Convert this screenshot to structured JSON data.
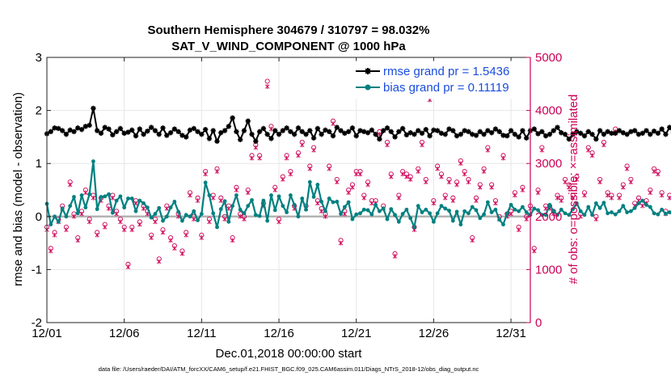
{
  "title_line1": "Southern Hemisphere 304679 / 310797 = 98.032%",
  "title_line2": "SAT_V_WIND_COMPONENT @ 1000 hPa",
  "footnote": "data file: /Users/raeder/DAI/ATM_forcXX/CAM6_setup/f.e21.FHIST_BGC.f09_025.CAM6assim.011/Diags_NTrS_2018-12/obs_diag_output.nc",
  "colors": {
    "rmse": "#000000",
    "bias": "#008080",
    "obs": "#cc0055",
    "legend_rmse_text": "#1a4ddb",
    "legend_bias_text": "#1a4ddb",
    "zero_line": "#b3b3b3",
    "grid": "#e6e6e6"
  },
  "chart_data": {
    "type": "line",
    "title": "Southern Hemisphere 304679 / 310797 = 98.032%",
    "subtitle": "SAT_V_WIND_COMPONENT @ 1000 hPa",
    "xlabel": "Dec.01,2018 00:00:00 start",
    "ylabel": "rmse and bias (model - observation)",
    "y2label": "# of obs: o=possible; ×=assimilated",
    "xlim": [
      0,
      31.25
    ],
    "ylim": [
      -2,
      3
    ],
    "y2lim": [
      0,
      5000
    ],
    "xticks": [
      0,
      5,
      10,
      15,
      20,
      25,
      30
    ],
    "xtick_labels": [
      "12/01",
      "12/06",
      "12/11",
      "12/16",
      "12/21",
      "12/26",
      "12/31"
    ],
    "yticks": [
      -2,
      -1,
      0,
      1,
      2,
      3
    ],
    "ytick_labels": [
      "-2",
      "-1",
      "0",
      "1",
      "2",
      "3"
    ],
    "y2ticks": [
      0,
      1000,
      2000,
      3000,
      4000,
      5000
    ],
    "y2tick_labels": [
      "0",
      "1000",
      "2000",
      "3000",
      "4000",
      "5000"
    ],
    "legend": [
      {
        "name": "rmse grand pr = 1.5436",
        "series": "rmse"
      },
      {
        "name": "bias grand pr = 0.11119",
        "series": "bias"
      }
    ],
    "legend_position": "top-right",
    "grid": true,
    "time_step_days": 0.25,
    "series": [
      {
        "name": "rmse",
        "axis": "left",
        "marker": "star",
        "values": [
          1.56,
          1.6,
          1.67,
          1.66,
          1.62,
          1.55,
          1.63,
          1.6,
          1.67,
          1.64,
          1.7,
          1.72,
          2.04,
          1.62,
          1.57,
          1.68,
          1.65,
          1.54,
          1.6,
          1.66,
          1.57,
          1.59,
          1.63,
          1.52,
          1.65,
          1.55,
          1.61,
          1.68,
          1.62,
          1.55,
          1.67,
          1.53,
          1.58,
          1.65,
          1.6,
          1.53,
          1.5,
          1.63,
          1.66,
          1.6,
          1.55,
          1.64,
          1.47,
          1.62,
          1.42,
          1.58,
          1.62,
          1.7,
          1.86,
          1.6,
          1.45,
          1.62,
          1.8,
          1.55,
          1.42,
          1.6,
          1.66,
          1.55,
          1.47,
          1.62,
          1.55,
          1.62,
          1.67,
          1.6,
          1.55,
          1.67,
          1.6,
          1.55,
          1.62,
          1.48,
          1.66,
          1.55,
          1.63,
          1.6,
          1.52,
          1.68,
          1.62,
          1.57,
          1.6,
          1.67,
          1.52,
          1.62,
          1.6,
          1.58,
          1.63,
          1.55,
          1.46,
          1.62,
          1.67,
          1.6,
          1.5,
          1.6,
          1.66,
          1.54,
          1.58,
          1.55,
          1.62,
          1.57,
          1.64,
          1.52,
          1.63,
          1.62,
          1.57,
          1.55,
          1.65,
          1.62,
          1.52,
          1.55,
          1.62,
          1.6,
          1.55,
          1.53,
          1.6,
          1.55,
          1.62,
          1.58,
          1.65,
          1.6,
          1.53,
          1.52,
          1.62,
          1.55,
          1.5,
          1.62,
          1.48,
          1.62,
          1.65,
          1.56,
          1.6,
          1.52,
          1.55,
          1.62,
          1.68,
          1.58,
          1.55,
          1.46,
          1.55,
          1.6,
          1.57,
          1.52,
          1.6,
          1.55,
          1.46,
          1.62,
          1.55,
          1.6,
          1.57,
          1.57,
          1.62,
          1.58,
          1.55,
          1.6,
          1.62,
          1.55,
          1.57,
          1.62,
          1.55,
          1.61,
          1.57,
          1.65,
          1.55,
          1.68,
          1.58,
          1.62,
          1.73,
          1.66,
          1.6,
          1.55,
          1.62,
          1.52,
          1.58,
          1.64,
          1.6,
          1.68,
          1.58,
          1.55,
          1.63,
          1.57,
          1.6,
          1.55,
          1.6,
          1.65,
          1.55,
          1.57,
          1.58,
          1.65,
          1.62,
          1.55,
          1.6,
          1.57,
          1.6,
          1.55,
          1.62,
          1.7,
          1.52,
          1.57,
          1.51,
          1.6,
          1.58,
          1.4,
          1.55,
          1.6,
          1.62,
          1.56,
          1.47,
          1.62,
          1.57,
          1.6,
          1.52,
          1.65,
          1.56,
          1.44,
          1.55,
          1.52,
          1.58,
          1.62,
          1.55,
          1.6,
          1.53,
          1.6,
          1.46,
          1.4,
          1.62,
          1.6,
          1.58,
          1.7,
          1.85,
          1.6,
          1.66,
          1.5,
          1.57,
          1.7,
          1.55,
          1.66,
          1.6,
          1.56,
          1.43,
          1.57,
          1.52,
          1.49,
          1.6,
          1.55,
          1.43,
          1.52,
          1.56,
          1.62,
          1.55,
          1.57,
          1.52,
          1.58,
          1.55,
          1.53,
          1.57,
          1.66,
          1.57,
          1.55
        ]
      },
      {
        "name": "bias",
        "axis": "left",
        "marker": "dot",
        "values": [
          0.24,
          -0.15,
          0.0,
          -0.1,
          0.15,
          0.0,
          0.2,
          0.37,
          0.06,
          0.4,
          0.17,
          0.42,
          1.04,
          0.14,
          0.37,
          0.38,
          0.42,
          0.07,
          0.3,
          0.38,
          0.17,
          0.34,
          0.34,
          0.1,
          0.3,
          0.25,
          0.17,
          -0.02,
          0.05,
          0.16,
          -0.08,
          0.0,
          0.17,
          0.28,
          0.09,
          -0.08,
          0.03,
          0.0,
          0.1,
          -0.07,
          0.05,
          0.64,
          0.4,
          0.06,
          -0.2,
          0.14,
          0.29,
          -0.1,
          0.2,
          0.4,
          0.13,
          0.06,
          0.2,
          0.31,
          0.03,
          0.01,
          0.3,
          -0.08,
          0.4,
          0.12,
          0.38,
          0.2,
          0.08,
          0.4,
          0.22,
          0.0,
          0.34,
          0.13,
          0.65,
          0.37,
          0.6,
          0.28,
          0.1,
          0.34,
          0.27,
          0.28,
          0.05,
          0.18,
          0.27,
          -0.05,
          0.04,
          0.06,
          0.13,
          0.12,
          0.04,
          0.22,
          0.1,
          0.15,
          -0.05,
          0.14,
          0.03,
          -0.1,
          0.05,
          0.13,
          -0.03,
          -0.2,
          0.2,
          0.08,
          0.13,
          0.06,
          -0.1,
          0.06,
          0.2,
          0.15,
          0.11,
          -0.08,
          0.09,
          -0.15,
          0.1,
          0.06,
          0.18,
          0.12,
          -0.03,
          0.04,
          0.27,
          0.08,
          0.13,
          -0.06,
          -0.15,
          0.06,
          0.22,
          0.13,
          0.1,
          0.18,
          0.08,
          0.03,
          0.15,
          0.12,
          0.03,
          0.03,
          0.22,
          0.1,
          0.03,
          0.13,
          0.06,
          0.03,
          0.14,
          0.25,
          0.1,
          0.03,
          0.18,
          0.03,
          0.25,
          0.16,
          0.26,
          0.06,
          0.08,
          0.04,
          0.1,
          0.2,
          0.08,
          0.1,
          0.16,
          0.25,
          0.3,
          0.22,
          0.18,
          0.06,
          0.04,
          0.13,
          0.05,
          0.08,
          0.03,
          0.05,
          0.03,
          0.13,
          0.22,
          0.04,
          -0.03,
          0.1,
          0.03,
          0.05,
          0.04,
          -0.03,
          0.1,
          0.2,
          -0.13,
          0.06,
          0.1,
          -0.05,
          -0.13,
          0.15,
          -0.01,
          0.05,
          0.1,
          0.21,
          0.4,
          0.11,
          0.38,
          0.25,
          0.16,
          0.35,
          0.4,
          0.2,
          0.03,
          0.22,
          0.18,
          0.46,
          0.16,
          0.2,
          0.44,
          0.23,
          0.17,
          0.22,
          0.27,
          0.2,
          0.27,
          0.12,
          0.13,
          0.2,
          -0.12,
          0.06,
          -0.08,
          0.08,
          -0.03,
          0.1,
          0.22,
          0.1,
          0.07,
          0.16,
          0.28,
          0.13,
          0.17,
          0.08,
          0.23,
          0.03,
          0.15,
          0.2,
          0.22,
          0.33,
          0.2,
          0.2,
          0.08,
          0.22,
          0.33,
          0.18,
          -0.02,
          -0.25,
          -0.05,
          -0.2,
          0.05,
          0.13,
          0.05,
          0.2,
          -0.12,
          -0.18,
          -0.08,
          -0.03,
          0.05,
          0.04,
          0.08,
          -0.2,
          -0.02,
          0.08,
          -0.04,
          -0.03
        ]
      },
      {
        "name": "# obs possible",
        "axis": "right",
        "marker": "circle",
        "values": [
          1800,
          1400,
          1700,
          1950,
          2200,
          1800,
          2650,
          2050,
          1600,
          2100,
          2500,
          1950,
          2400,
          1700,
          2350,
          1850,
          2200,
          2400,
          2100,
          1950,
          1800,
          1100,
          1800,
          2300,
          1900,
          2200,
          2100,
          1650,
          1950,
          1200,
          1750,
          2200,
          1600,
          1450,
          2050,
          1350,
          1700,
          2450,
          2000,
          2350,
          1650,
          2850,
          1950,
          2400,
          2900,
          2350,
          2000,
          2200,
          1600,
          2550,
          2050,
          2000,
          2500,
          3150,
          3350,
          3150,
          2250,
          4550,
          3700,
          2550,
          1950,
          2750,
          3150,
          2850,
          2200,
          3200,
          3400,
          2200,
          2950,
          3300,
          2300,
          2150,
          2050,
          2950,
          3800,
          2700,
          1550,
          2100,
          2500,
          2600,
          2850,
          2850,
          2400,
          2650,
          2300,
          2300,
          3600,
          2200,
          3400,
          2800,
          1300,
          2400,
          2850,
          2800,
          2750,
          1800,
          2900,
          3400,
          2700,
          4250,
          2300,
          2950,
          2800,
          2400,
          2700,
          2350,
          2650,
          3050,
          2850,
          2700,
          1600,
          2350,
          2600,
          2900,
          3300,
          2600,
          2300,
          2000,
          3150,
          2050,
          2100,
          2450,
          1800,
          2550,
          2000,
          2200,
          1400,
          2500,
          3300,
          2200,
          2200,
          2100,
          2400,
          2350,
          2700,
          2600,
          2400,
          2750,
          2050,
          2450,
          3300,
          3200,
          2000,
          2700,
          3400,
          2450,
          2400,
          3650,
          2400,
          2600,
          2950,
          2700,
          2250,
          2350,
          2250,
          2300,
          2500,
          2900,
          2850,
          2450,
          2100,
          2400,
          2150,
          2300,
          2750,
          2000,
          2850,
          2400,
          2550,
          2650,
          1950,
          2450,
          2600,
          2350,
          2200,
          2250,
          2100,
          2600,
          2950,
          2700,
          3050,
          2000,
          2850,
          2500,
          2550,
          2300,
          2650,
          2300,
          2100,
          2400,
          2550,
          2050,
          2400,
          2350,
          2700,
          2950,
          2900,
          1850,
          2850,
          2450,
          3050,
          2500,
          3000,
          2350,
          2400,
          2200,
          2900,
          2850,
          2650,
          3100,
          2150,
          2450,
          2300,
          2050,
          2000,
          3500,
          2550,
          3350,
          2650,
          2350,
          3050,
          2050,
          2550,
          2600,
          2300,
          2250,
          2950,
          3650,
          1950,
          2400,
          2150,
          2800,
          1850,
          3050,
          2250,
          3200,
          2500,
          1900,
          2150,
          2650,
          2450,
          3250,
          2200,
          3000,
          2850,
          2500,
          2650,
          2100,
          2600,
          2400,
          2750,
          2400
        ]
      },
      {
        "name": "# obs assimilated",
        "axis": "right",
        "marker": "x",
        "values": [
          1750,
          1350,
          1650,
          1900,
          2150,
          1750,
          2600,
          2000,
          1550,
          2050,
          2450,
          1900,
          2350,
          1650,
          2300,
          1800,
          2150,
          2350,
          2050,
          1900,
          1750,
          1050,
          1750,
          2250,
          1850,
          2150,
          2050,
          1600,
          1900,
          1150,
          1700,
          2150,
          1550,
          1400,
          2000,
          1300,
          1650,
          2400,
          1950,
          2300,
          1600,
          2800,
          1900,
          2350,
          2850,
          2300,
          1950,
          2150,
          1550,
          2500,
          2000,
          1950,
          2450,
          3100,
          3300,
          3100,
          2200,
          4450,
          3650,
          2500,
          1900,
          2700,
          3100,
          2800,
          2150,
          3150,
          3350,
          2150,
          2900,
          3250,
          2250,
          2100,
          2000,
          2900,
          3750,
          2650,
          1500,
          2050,
          2450,
          2550,
          2800,
          2800,
          2350,
          2600,
          2250,
          2250,
          3550,
          2150,
          3350,
          2750,
          1250,
          2350,
          2800,
          2750,
          2700,
          1750,
          2850,
          3350,
          2650,
          4200,
          2250,
          2900,
          2750,
          2350,
          2650,
          2300,
          2600,
          3000,
          2800,
          2650,
          1550,
          2300,
          2550,
          2850,
          3250,
          2550,
          2250,
          1950,
          3100,
          2000,
          2050,
          2400,
          1750,
          2500,
          1950,
          2150,
          1350,
          2450,
          3250,
          2150,
          2150,
          2050,
          2350,
          2300,
          2650,
          2550,
          2350,
          2700,
          2000,
          2400,
          3250,
          3150,
          1950,
          2650,
          3350,
          2400,
          2350,
          3600,
          2350,
          2550,
          2900,
          2650,
          2200,
          2300,
          2200,
          2250,
          2450,
          2850,
          2800,
          2400,
          2050,
          2350,
          2100,
          2250,
          2700,
          1950,
          2800,
          2350,
          2500,
          2600,
          1900,
          2400,
          2550,
          2300,
          2150,
          2200,
          2050,
          2550,
          2900,
          2650,
          3000,
          1950,
          2800,
          2450,
          2500,
          2250,
          2600,
          2250,
          2050,
          2350,
          2500,
          2000,
          2350,
          2300,
          2650,
          2900,
          2850,
          1800,
          2800,
          2400,
          3000,
          2450,
          2950,
          2300,
          2350,
          2150,
          2850,
          2800,
          2600,
          3050,
          2100,
          2400,
          2250,
          2000,
          1950,
          3450,
          2500,
          3300,
          2600,
          2300,
          3000,
          2000,
          2500,
          2550,
          2250,
          2200,
          2900,
          3600,
          1900,
          2350,
          2100,
          2750,
          1800,
          3000,
          2200,
          3150,
          2450,
          1850,
          2100,
          2600,
          2400,
          3200,
          2150,
          2950,
          2800,
          2450,
          2600,
          2050,
          2550,
          2350,
          2700,
          2350
        ]
      }
    ]
  }
}
